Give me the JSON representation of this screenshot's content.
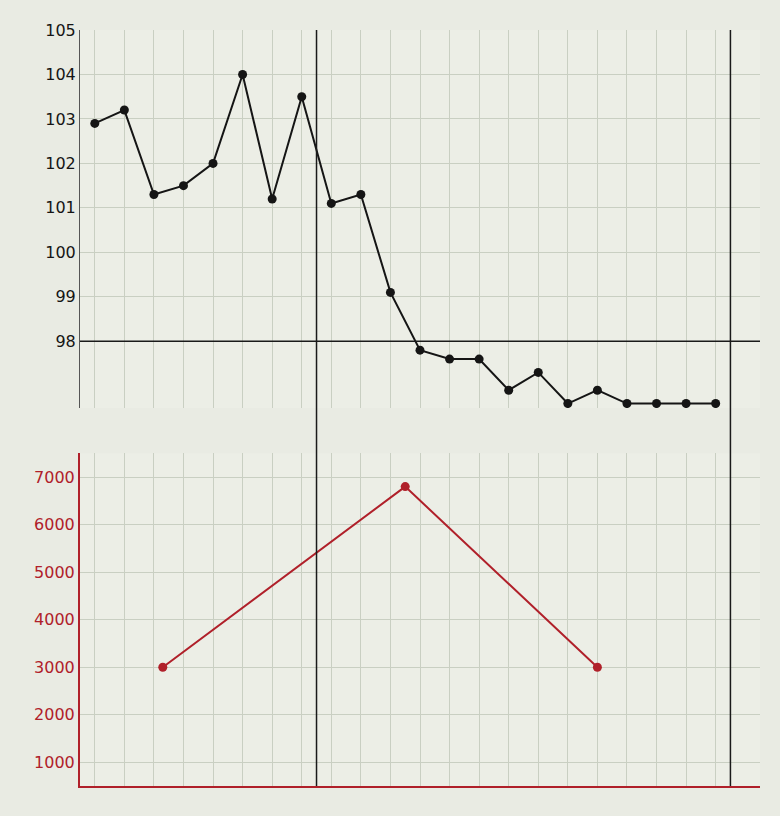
{
  "chart_data": {
    "type": "line",
    "x": [
      0,
      1,
      2,
      3,
      4,
      5,
      6,
      7,
      8,
      9,
      10,
      11,
      12,
      13,
      14,
      15,
      16,
      17,
      18,
      19,
      20,
      21
    ],
    "series": [
      {
        "color": "#151515",
        "marker": "circle",
        "line_style": "solid",
        "values": [
          102.9,
          103.2,
          101.3,
          101.5,
          102.0,
          104.0,
          101.2,
          103.5,
          101.1,
          101.3,
          99.1,
          97.8,
          97.6,
          97.6,
          96.9,
          97.3,
          96.6,
          96.9,
          96.6,
          96.6,
          96.6,
          96.6
        ]
      },
      {
        "color": "#b0202a",
        "marker": "circle",
        "line_style": "solid",
        "axis": "y2",
        "x": [
          2.3,
          10.5,
          17
        ],
        "values": [
          3000,
          6800,
          3000
        ]
      }
    ],
    "xlim": [
      -0.5,
      22.5
    ],
    "ylim": [
      96.5,
      105
    ],
    "yticks": [
      98,
      99,
      100,
      101,
      102,
      103,
      104,
      105
    ],
    "y2lim": [
      500,
      7500
    ],
    "y2ticks": [
      1000,
      2000,
      3000,
      4000,
      5000,
      6000,
      7000
    ],
    "reference_lines": {
      "x": [
        7.5,
        21.5
      ],
      "y": 98
    },
    "grid": true,
    "tick_labels": "y"
  }
}
